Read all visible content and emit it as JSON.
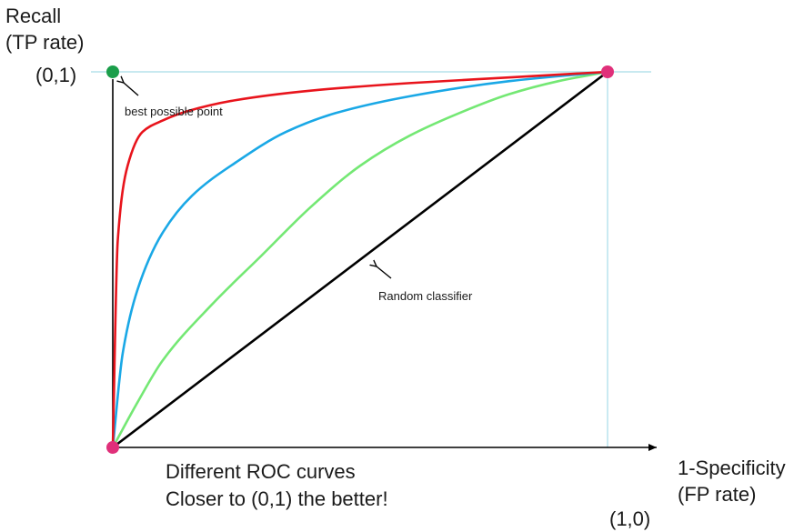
{
  "chart_data": {
    "type": "line",
    "ylabel": [
      "Recall",
      "(TP rate)"
    ],
    "xlabel": [
      "1-Specificity",
      "(FP rate)"
    ],
    "xlim": [
      0,
      1
    ],
    "ylim": [
      0,
      1
    ],
    "point_labels": {
      "best": "(0,1)",
      "corner": "(1,0)"
    },
    "annotations": {
      "best": "best possible point",
      "random": "Random classifier"
    },
    "caption": [
      "Different ROC curves",
      "Closer to (0,1) the better!"
    ],
    "colors": {
      "red": "#e8141c",
      "blue": "#1aa8e6",
      "green": "#74e874",
      "random": "#000000",
      "best_point": "#1a9e4a",
      "end_points": "#e0307a",
      "guides": "#a8dce8"
    },
    "series": [
      {
        "color": "red",
        "x": [
          0,
          0.01,
          0.03,
          0.06,
          0.1,
          0.15,
          0.25,
          0.4,
          0.6,
          0.8,
          1.0
        ],
        "y": [
          0,
          0.55,
          0.75,
          0.84,
          0.87,
          0.895,
          0.925,
          0.95,
          0.97,
          0.985,
          1.0
        ]
      },
      {
        "color": "blue",
        "x": [
          0,
          0.02,
          0.05,
          0.1,
          0.16,
          0.25,
          0.35,
          0.45,
          0.6,
          0.8,
          1.0
        ],
        "y": [
          0,
          0.25,
          0.42,
          0.57,
          0.67,
          0.76,
          0.84,
          0.89,
          0.935,
          0.975,
          1.0
        ]
      },
      {
        "color": "green",
        "x": [
          0,
          0.05,
          0.1,
          0.2,
          0.3,
          0.4,
          0.5,
          0.6,
          0.7,
          0.8,
          0.9,
          1.0
        ],
        "y": [
          0,
          0.12,
          0.23,
          0.38,
          0.51,
          0.64,
          0.75,
          0.83,
          0.89,
          0.94,
          0.975,
          1.0
        ]
      },
      {
        "color": "random",
        "x": [
          0,
          1
        ],
        "y": [
          0,
          1
        ]
      }
    ],
    "points": [
      {
        "x": 0,
        "y": 1,
        "color": "best_point"
      },
      {
        "x": 1,
        "y": 1,
        "color": "end_points"
      },
      {
        "x": 0,
        "y": 0,
        "color": "end_points"
      }
    ],
    "grid": false,
    "legend": "none"
  }
}
